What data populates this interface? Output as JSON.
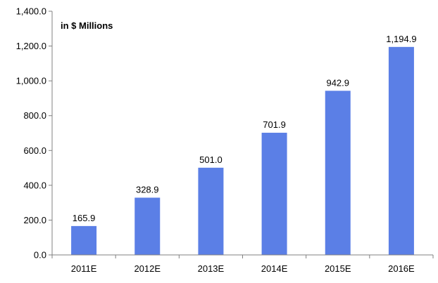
{
  "chart_data": {
    "type": "bar",
    "title": "",
    "unit_label": "in $ Millions",
    "xlabel": "",
    "ylabel": "",
    "categories": [
      "2011E",
      "2012E",
      "2013E",
      "2014E",
      "2015E",
      "2016E"
    ],
    "values": [
      165.9,
      328.9,
      501.0,
      701.9,
      942.9,
      1194.9
    ],
    "value_labels": [
      "165.9",
      "328.9",
      "501.0",
      "701.9",
      "942.9",
      "1,194.9"
    ],
    "ylim": [
      0,
      1400
    ],
    "yticks": [
      0,
      200,
      400,
      600,
      800,
      1000,
      1200,
      1400
    ],
    "ytick_labels": [
      "0.0",
      "200.0",
      "400.0",
      "600.0",
      "800.0",
      "1,000.0",
      "1,200.0",
      "1,400.0"
    ],
    "grid": false,
    "legend": "none",
    "bar_color": "#5b7fe6",
    "axis_color": "#808080"
  }
}
